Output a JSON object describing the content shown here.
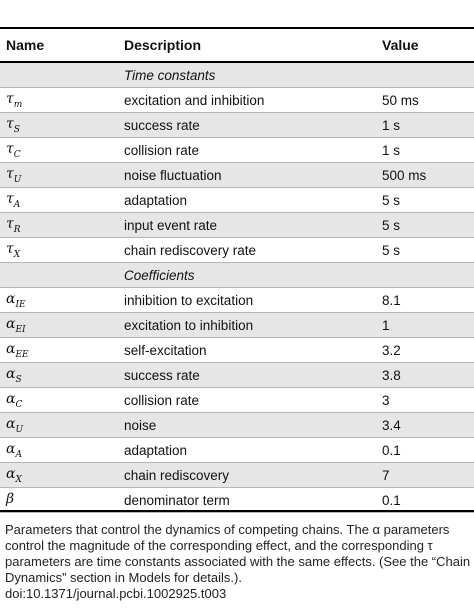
{
  "header": {
    "name": "Name",
    "description": "Description",
    "value": "Value"
  },
  "rows": [
    {
      "type": "section",
      "label": "Time constants"
    },
    {
      "type": "param",
      "base": "τ",
      "sub": "m",
      "description": "excitation and inhibition",
      "value": "50 ms"
    },
    {
      "type": "param",
      "base": "τ",
      "sub": "S",
      "description": "success rate",
      "value": "1 s"
    },
    {
      "type": "param",
      "base": "τ",
      "sub": "C",
      "description": "collision rate",
      "value": "1 s"
    },
    {
      "type": "param",
      "base": "τ",
      "sub": "U",
      "description": "noise fluctuation",
      "value": "500 ms"
    },
    {
      "type": "param",
      "base": "τ",
      "sub": "A",
      "description": "adaptation",
      "value": "5 s"
    },
    {
      "type": "param",
      "base": "τ",
      "sub": "R",
      "description": "input event rate",
      "value": "5 s"
    },
    {
      "type": "param",
      "base": "τ",
      "sub": "X",
      "description": "chain rediscovery rate",
      "value": "5 s"
    },
    {
      "type": "section",
      "label": "Coefficients"
    },
    {
      "type": "param",
      "base": "α",
      "sub": "IE",
      "description": "inhibition to excitation",
      "value": "8.1"
    },
    {
      "type": "param",
      "base": "α",
      "sub": "EI",
      "description": "excitation to inhibition",
      "value": "1"
    },
    {
      "type": "param",
      "base": "α",
      "sub": "EE",
      "description": "self-excitation",
      "value": "3.2"
    },
    {
      "type": "param",
      "base": "α",
      "sub": "S",
      "description": "success rate",
      "value": "3.8"
    },
    {
      "type": "param",
      "base": "α",
      "sub": "C",
      "description": "collision rate",
      "value": "3"
    },
    {
      "type": "param",
      "base": "α",
      "sub": "U",
      "description": "noise",
      "value": "3.4"
    },
    {
      "type": "param",
      "base": "α",
      "sub": "A",
      "description": "adaptation",
      "value": "0.1"
    },
    {
      "type": "param",
      "base": "α",
      "sub": "X",
      "description": "chain rediscovery",
      "value": "7"
    },
    {
      "type": "param",
      "base": "β",
      "sub": "",
      "description": "denominator term",
      "value": "0.1"
    }
  ],
  "caption": {
    "line1": "Parameters that control the dynamics of competing chains. The α parameters",
    "line2": "control the magnitude of the corresponding effect, and the corresponding τ",
    "line3": "parameters are time constants associated with the same effects. (See the “Chain",
    "line4": "Dynamics” section in Models for details.).",
    "doi": "doi:10.1371/journal.pcbi.1002925.t003"
  }
}
